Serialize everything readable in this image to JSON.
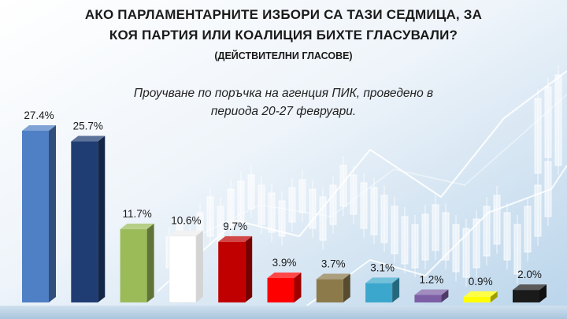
{
  "header": {
    "title_line1": "АКО ПАРЛАМЕНТАРНИТЕ ИЗБОРИ СА ТАЗИ СЕДМИЦА, ЗА",
    "title_line2": "КОЯ ПАРТИЯ ИЛИ КОАЛИЦИЯ БИХТЕ ГЛАСУВАЛИ?",
    "title_line3": "(ДЕЙСТВИТЕЛНИ ГЛАСОВЕ)",
    "subtitle_line1": "Проучване по поръчка на агенция ПИК, проведено в",
    "subtitle_line2": "периода 20-27 февруари."
  },
  "chart_data": {
    "type": "bar",
    "title": "АКО ПАРЛАМЕНТАРНИТЕ ИЗБОРИ СА ТАЗИ СЕДМИЦА, ЗА КОЯ ПАРТИЯ ИЛИ КОАЛИЦИЯ БИХТЕ ГЛАСУВАЛИ? (ДЕЙСТВИТЕЛНИ ГЛАСОВЕ)",
    "subtitle": "Проучване по поръчка на агенция ПИК, проведено в периода 20-27 февруари.",
    "values": [
      27.4,
      25.7,
      11.7,
      10.6,
      9.7,
      3.9,
      3.7,
      3.1,
      1.2,
      0.9,
      2.0
    ],
    "labels": [
      "27.4%",
      "25.7%",
      "11.7%",
      "10.6%",
      "9.7%",
      "3.9%",
      "3.7%",
      "3.1%",
      "1.2%",
      "0.9%",
      "2.0%"
    ],
    "colors": [
      "#4f7fc4",
      "#1f3d73",
      "#9bbb59",
      "#ffffff",
      "#c00000",
      "#ff0000",
      "#8c7a4b",
      "#3ca7cc",
      "#7d5fa6",
      "#ffff00",
      "#1a1a1a"
    ],
    "ylim": [
      0,
      27.4
    ],
    "grid": false,
    "legend": "none"
  }
}
